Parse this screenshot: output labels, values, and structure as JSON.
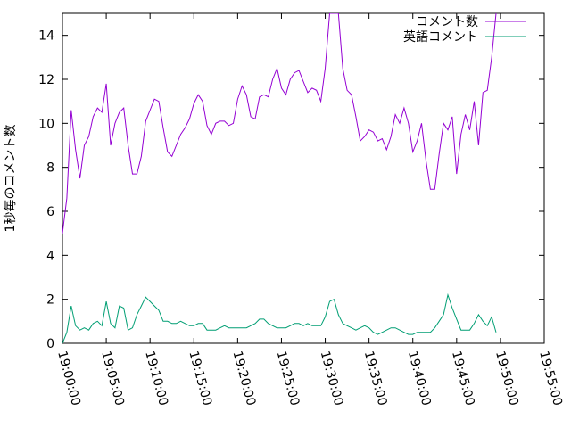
{
  "chart_data": {
    "type": "line",
    "title": "",
    "xlabel": "",
    "ylabel": "1秒毎のコメント数",
    "xlim": [
      "19:00:00",
      "19:55:00"
    ],
    "ylim": [
      0,
      15
    ],
    "grid": false,
    "legend_position": "top-right",
    "x_ticks": [
      "19:00:00",
      "19:05:00",
      "19:10:00",
      "19:15:00",
      "19:20:00",
      "19:25:00",
      "19:30:00",
      "19:35:00",
      "19:40:00",
      "19:45:00",
      "19:50:00",
      "19:55:00"
    ],
    "y_ticks": [
      "0",
      "2",
      "4",
      "6",
      "8",
      "10",
      "12",
      "14"
    ],
    "x": [
      "19:00:00",
      "19:00:30",
      "19:01:00",
      "19:01:30",
      "19:02:00",
      "19:02:30",
      "19:03:00",
      "19:03:30",
      "19:04:00",
      "19:04:30",
      "19:05:00",
      "19:05:30",
      "19:06:00",
      "19:06:30",
      "19:07:00",
      "19:07:30",
      "19:08:00",
      "19:08:30",
      "19:09:00",
      "19:09:30",
      "19:10:00",
      "19:10:30",
      "19:11:00",
      "19:11:30",
      "19:12:00",
      "19:12:30",
      "19:13:00",
      "19:13:30",
      "19:14:00",
      "19:14:30",
      "19:15:00",
      "19:15:30",
      "19:16:00",
      "19:16:30",
      "19:17:00",
      "19:17:30",
      "19:18:00",
      "19:18:30",
      "19:19:00",
      "19:19:30",
      "19:20:00",
      "19:20:30",
      "19:21:00",
      "19:21:30",
      "19:22:00",
      "19:22:30",
      "19:23:00",
      "19:23:30",
      "19:24:00",
      "19:24:30",
      "19:25:00",
      "19:25:30",
      "19:26:00",
      "19:26:30",
      "19:27:00",
      "19:27:30",
      "19:28:00",
      "19:28:30",
      "19:29:00",
      "19:29:30",
      "19:30:00",
      "19:30:30",
      "19:31:00",
      "19:31:30",
      "19:32:00",
      "19:32:30",
      "19:33:00",
      "19:33:30",
      "19:34:00",
      "19:34:30",
      "19:35:00",
      "19:35:30",
      "19:36:00",
      "19:36:30",
      "19:37:00",
      "19:37:30",
      "19:38:00",
      "19:38:30",
      "19:39:00",
      "19:39:30",
      "19:40:00",
      "19:40:30",
      "19:41:00",
      "19:41:30",
      "19:42:00",
      "19:42:30",
      "19:43:00",
      "19:43:30",
      "19:44:00",
      "19:44:30",
      "19:45:00",
      "19:45:30",
      "19:46:00",
      "19:46:30",
      "19:47:00",
      "19:47:30",
      "19:48:00",
      "19:48:30",
      "19:49:00",
      "19:49:30"
    ],
    "series": [
      {
        "name": "コメント数",
        "color": "#9400d3",
        "values": [
          5.0,
          6.6,
          10.6,
          8.8,
          7.5,
          9.0,
          9.4,
          10.3,
          10.7,
          10.5,
          11.8,
          9.0,
          10.0,
          10.5,
          10.7,
          9.0,
          7.7,
          7.7,
          8.5,
          10.1,
          10.6,
          11.1,
          11.0,
          9.8,
          8.7,
          8.5,
          9.0,
          9.5,
          9.8,
          10.2,
          10.9,
          11.3,
          11.0,
          9.9,
          9.5,
          10.0,
          10.1,
          10.1,
          9.9,
          10.0,
          11.1,
          11.7,
          11.3,
          10.3,
          10.2,
          11.2,
          11.3,
          11.2,
          12.0,
          12.5,
          11.6,
          11.3,
          12.0,
          12.3,
          12.4,
          11.9,
          11.4,
          11.6,
          11.5,
          11.0,
          12.5,
          15.0,
          15.0,
          15.0,
          12.5,
          11.5,
          11.3,
          10.3,
          9.2,
          9.4,
          9.7,
          9.6,
          9.2,
          9.3,
          8.8,
          9.4,
          10.4,
          10.0,
          10.7,
          10.0,
          8.7,
          9.2,
          10.0,
          8.3,
          7.0,
          7.0,
          8.6,
          10.0,
          9.7,
          10.3,
          7.7,
          9.5,
          10.4,
          9.7,
          11.0,
          9.0,
          11.4,
          11.5,
          13.0,
          15.0
        ]
      },
      {
        "name": "英語コメント",
        "color": "#009e73",
        "values": [
          0,
          0.5,
          1.7,
          0.8,
          0.6,
          0.7,
          0.6,
          0.9,
          1.0,
          0.8,
          1.9,
          0.9,
          0.7,
          1.7,
          1.6,
          0.6,
          0.7,
          1.3,
          1.7,
          2.1,
          1.9,
          1.7,
          1.5,
          1.0,
          1.0,
          0.9,
          0.9,
          1.0,
          0.9,
          0.8,
          0.8,
          0.9,
          0.9,
          0.6,
          0.6,
          0.6,
          0.7,
          0.8,
          0.7,
          0.7,
          0.7,
          0.7,
          0.7,
          0.8,
          0.9,
          1.1,
          1.1,
          0.9,
          0.8,
          0.7,
          0.7,
          0.7,
          0.8,
          0.9,
          0.9,
          0.8,
          0.9,
          0.8,
          0.8,
          0.8,
          1.2,
          1.9,
          2.0,
          1.3,
          0.9,
          0.8,
          0.7,
          0.6,
          0.7,
          0.8,
          0.7,
          0.5,
          0.4,
          0.5,
          0.6,
          0.7,
          0.7,
          0.6,
          0.5,
          0.4,
          0.4,
          0.5,
          0.5,
          0.5,
          0.5,
          0.7,
          1.0,
          1.3,
          2.2,
          1.6,
          1.1,
          0.6,
          0.6,
          0.6,
          0.9,
          1.3,
          1.0,
          0.8,
          1.2,
          0.5
        ]
      }
    ]
  }
}
